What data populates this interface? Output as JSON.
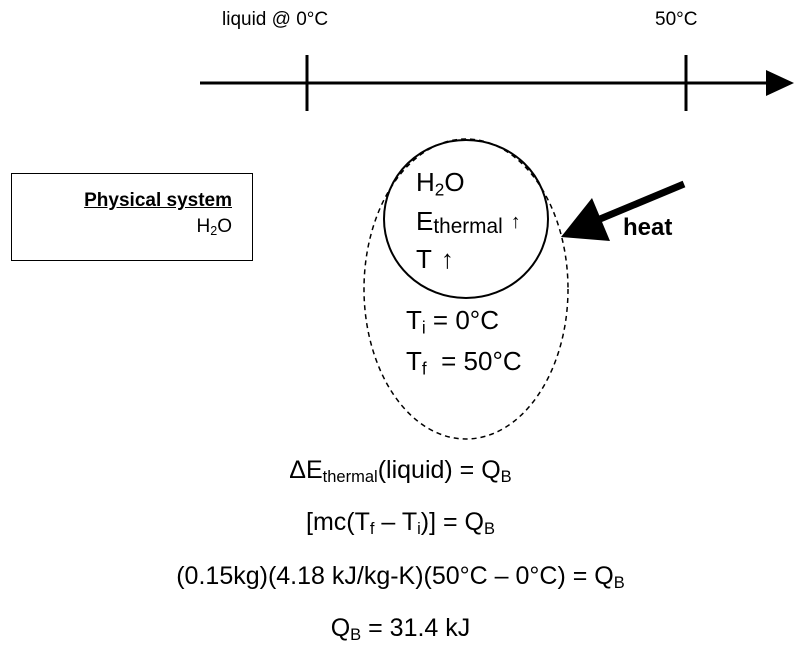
{
  "timeline": {
    "start_label": "liquid @ 0°C",
    "end_label": "50°C"
  },
  "system_box": {
    "title": "Physical system",
    "subtitle_main": "H",
    "subtitle_sub": "2",
    "subtitle_tail": "O"
  },
  "inner": {
    "h2o_main": "H",
    "h2o_sub": "2",
    "h2o_tail": "O",
    "e_main": "E",
    "e_sub": "thermal",
    "e_arrow": "↑",
    "t_main": "T",
    "t_arrow": "↑"
  },
  "outer": {
    "ti_main": "T",
    "ti_sub": "i",
    "ti_tail": " = 0°C",
    "tf_main": "T",
    "tf_sub": "f",
    "tf_tail": "  = 50°C"
  },
  "heat_label": "heat",
  "equations": {
    "eq1": {
      "delta": "ΔE",
      "sub1": "thermal",
      "mid": "(liquid) = Q",
      "sub2": "B"
    },
    "eq2": {
      "a": "[mc(T",
      "sub1": "f",
      "b": " – T",
      "sub2": "i",
      "c": ")] = Q",
      "sub3": "B"
    },
    "eq3": {
      "a": "(0.15kg)(4.18 kJ/kg-K)(50°C – 0°C) = Q",
      "sub1": "B"
    },
    "eq4": {
      "a": "Q",
      "sub1": "B",
      "b": " = 31.4 kJ"
    }
  },
  "colors": {
    "ink": "#000000",
    "background": "#ffffff"
  }
}
